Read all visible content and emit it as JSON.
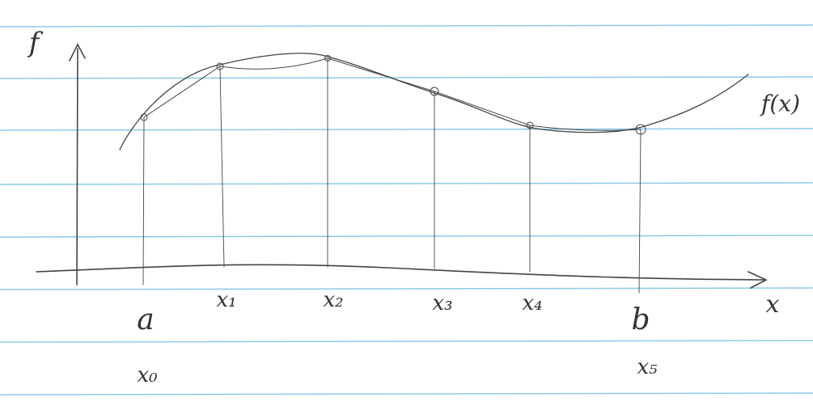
{
  "axes": {
    "y_label": "f",
    "x_label": "x"
  },
  "curve_label": "f(x)",
  "nodes": [
    {
      "label": "x₀",
      "alias": "a"
    },
    {
      "label": "x₁"
    },
    {
      "label": "x₂"
    },
    {
      "label": "x₃"
    },
    {
      "label": "x₄"
    },
    {
      "label": "x₅",
      "alias": "b"
    }
  ]
}
